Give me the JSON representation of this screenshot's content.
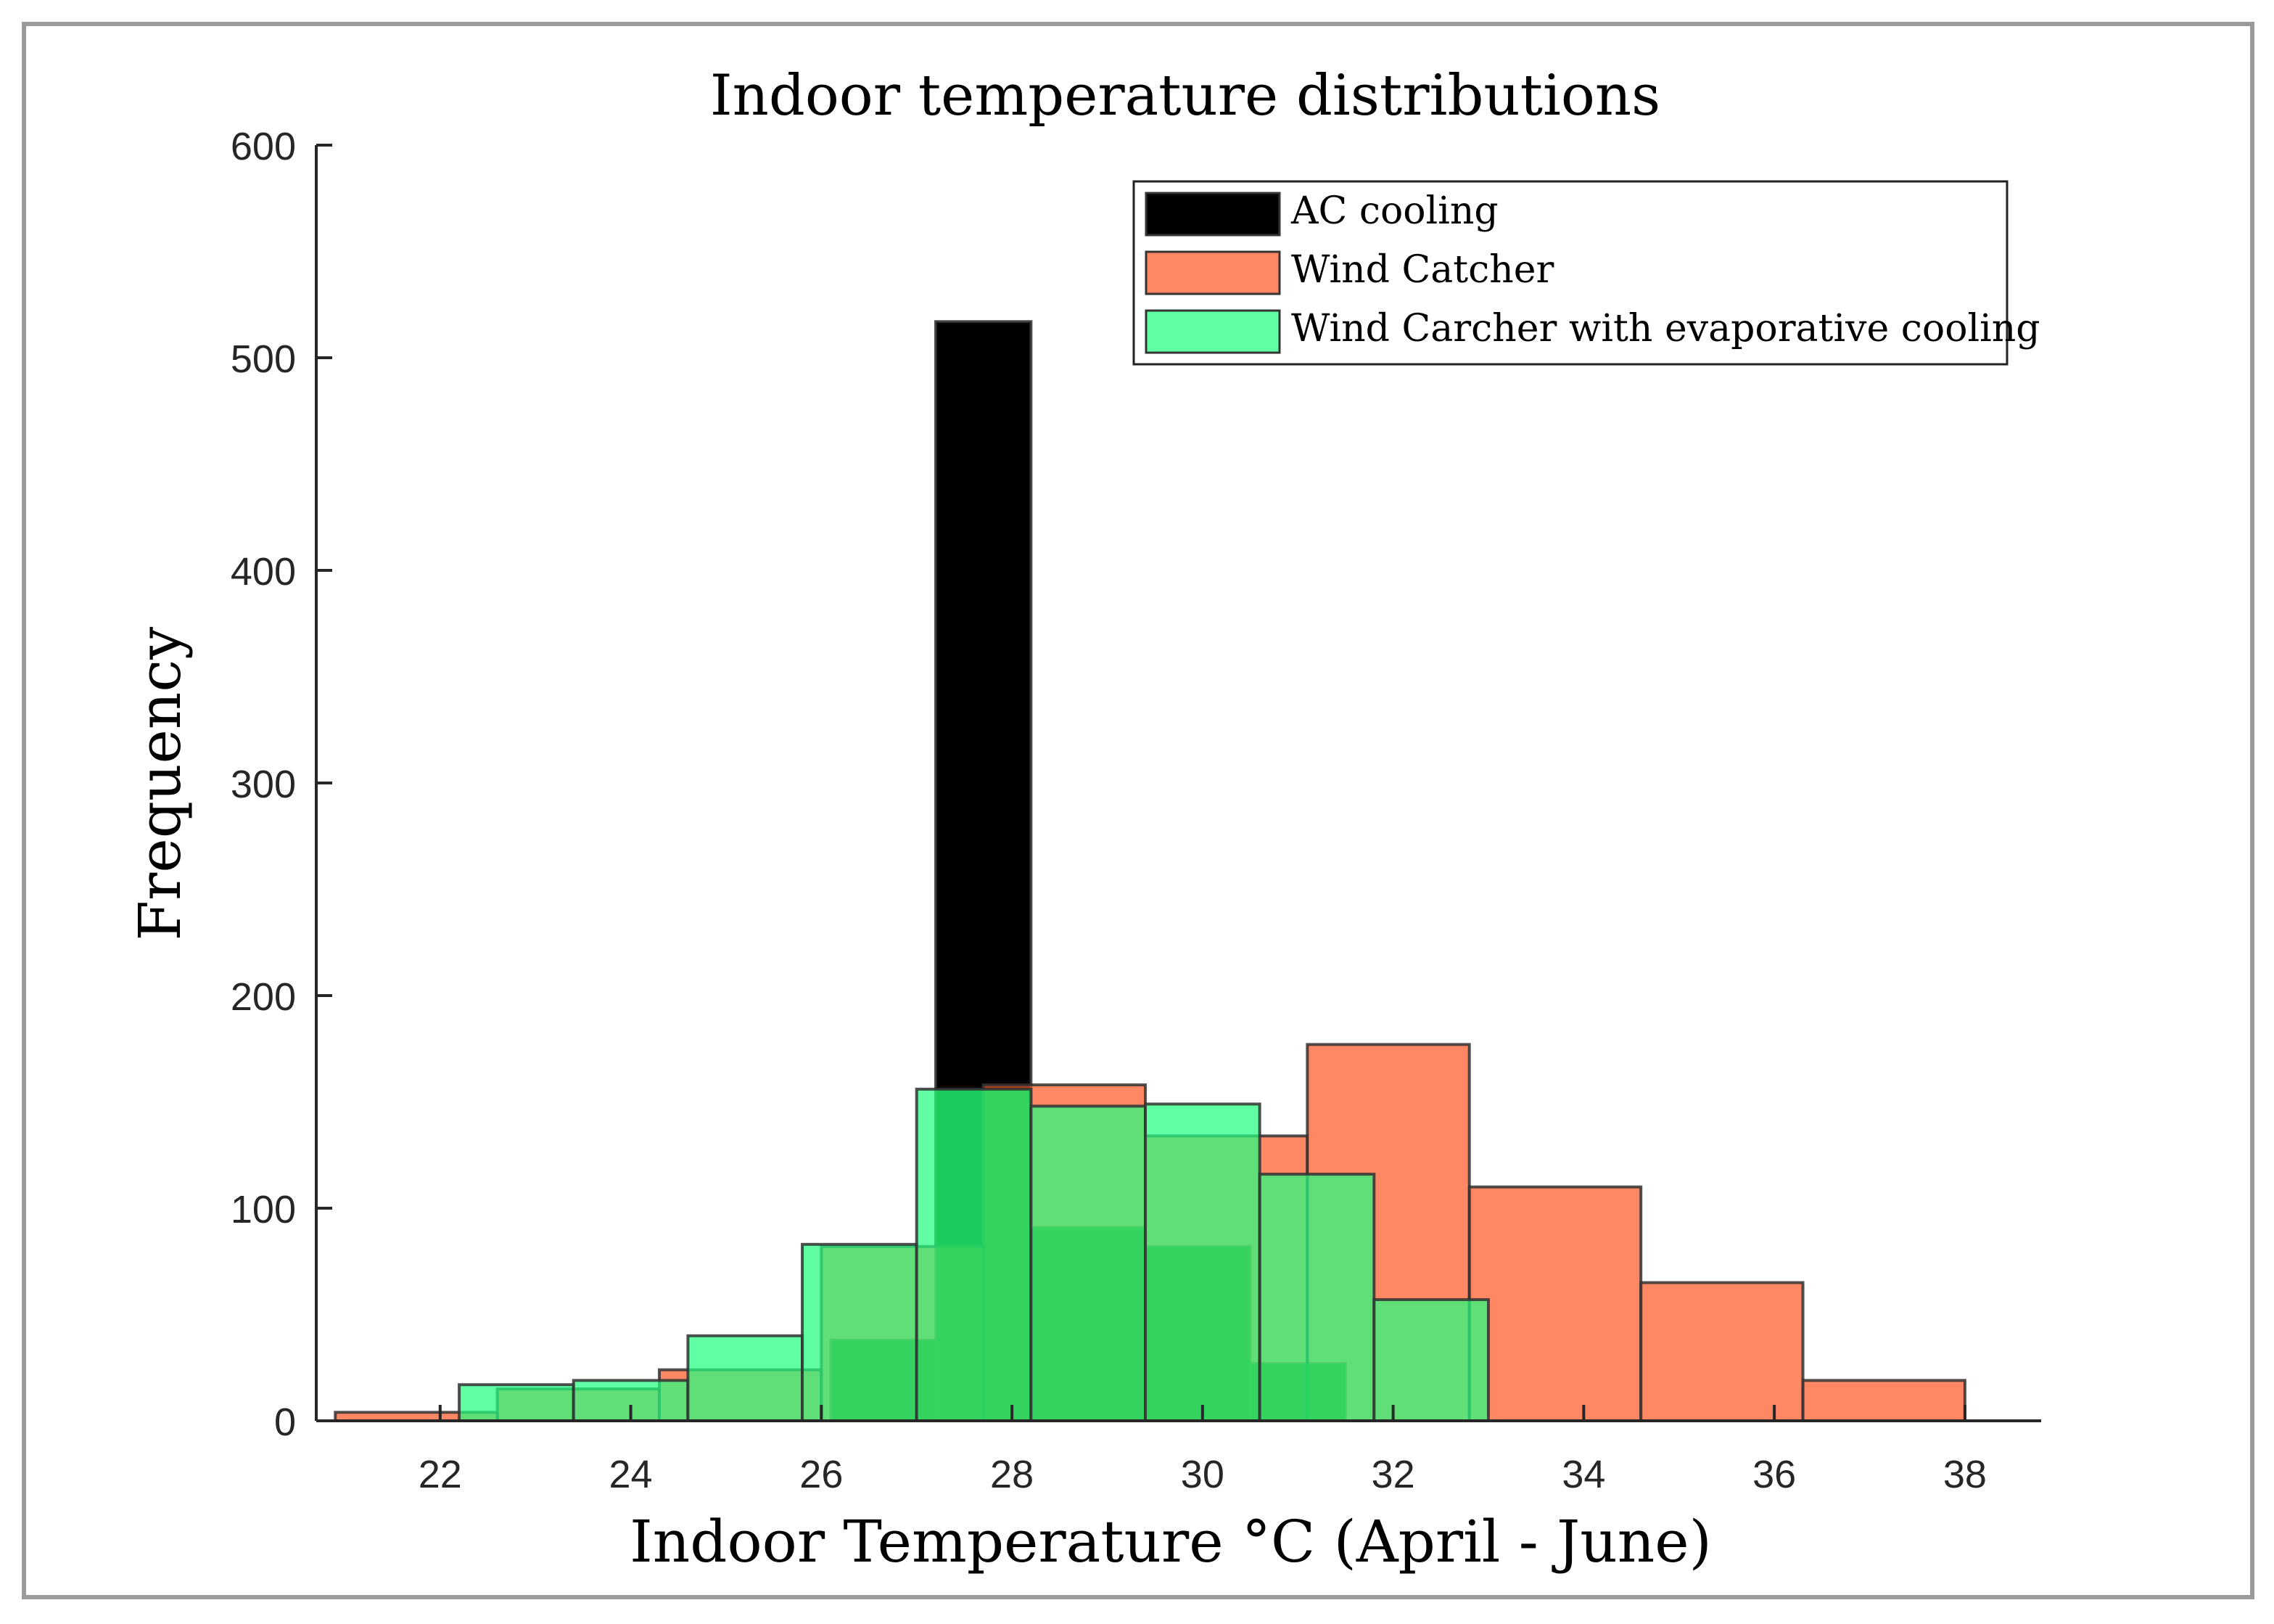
{
  "chart_data": {
    "type": "histogram",
    "title": "Indoor temperature distributions",
    "xlabel": "Indoor Temperature °C (April - June)",
    "ylabel": "Frequency",
    "xlim": [
      20.7,
      38.8
    ],
    "ylim": [
      0,
      600
    ],
    "xticks": [
      22,
      24,
      26,
      28,
      30,
      32,
      34,
      36,
      38
    ],
    "yticks": [
      0,
      100,
      200,
      300,
      400,
      500,
      600
    ],
    "legend_position": "top-right",
    "colors": {
      "ac": "#000000",
      "wind": "#ff5a28",
      "evap": "#22ff80",
      "overlap": "#1e7a00",
      "edge": "#333333",
      "frame": "#9a9a9a"
    },
    "series": [
      {
        "name": "AC cooling",
        "key": "ac",
        "bins": [
          {
            "x0": 26.1,
            "x1": 27.2,
            "count": 38
          },
          {
            "x0": 27.2,
            "x1": 28.2,
            "count": 517
          },
          {
            "x0": 28.2,
            "x1": 29.4,
            "count": 91
          },
          {
            "x0": 29.4,
            "x1": 30.5,
            "count": 82
          },
          {
            "x0": 30.5,
            "x1": 31.5,
            "count": 27
          }
        ]
      },
      {
        "name": "Wind Catcher",
        "key": "wind",
        "bins": [
          {
            "x0": 20.9,
            "x1": 22.6,
            "count": 4
          },
          {
            "x0": 22.6,
            "x1": 24.3,
            "count": 15
          },
          {
            "x0": 24.3,
            "x1": 26.0,
            "count": 24
          },
          {
            "x0": 26.0,
            "x1": 27.7,
            "count": 82
          },
          {
            "x0": 27.7,
            "x1": 29.4,
            "count": 158
          },
          {
            "x0": 29.4,
            "x1": 31.1,
            "count": 134
          },
          {
            "x0": 31.1,
            "x1": 32.8,
            "count": 177
          },
          {
            "x0": 32.8,
            "x1": 34.6,
            "count": 110
          },
          {
            "x0": 34.6,
            "x1": 36.3,
            "count": 65
          },
          {
            "x0": 36.3,
            "x1": 38.0,
            "count": 19
          }
        ]
      },
      {
        "name": "Wind Carcher with evaporative cooling",
        "key": "evap",
        "bins": [
          {
            "x0": 22.2,
            "x1": 23.4,
            "count": 17
          },
          {
            "x0": 23.4,
            "x1": 24.6,
            "count": 19
          },
          {
            "x0": 24.6,
            "x1": 25.8,
            "count": 40
          },
          {
            "x0": 25.8,
            "x1": 27.0,
            "count": 83
          },
          {
            "x0": 27.0,
            "x1": 28.2,
            "count": 156
          },
          {
            "x0": 28.2,
            "x1": 29.4,
            "count": 148
          },
          {
            "x0": 29.4,
            "x1": 30.6,
            "count": 149
          },
          {
            "x0": 30.6,
            "x1": 31.8,
            "count": 116
          },
          {
            "x0": 31.8,
            "x1": 33.0,
            "count": 57
          }
        ]
      }
    ]
  }
}
